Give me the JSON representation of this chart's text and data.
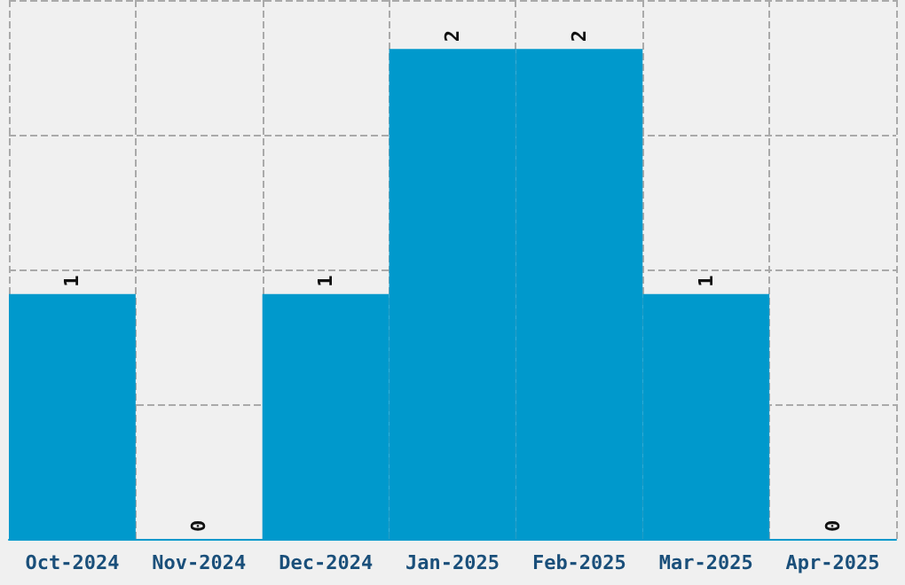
{
  "chart_data": {
    "type": "bar",
    "categories": [
      "Oct-2024",
      "Nov-2024",
      "Dec-2024",
      "Jan-2025",
      "Feb-2025",
      "Mar-2025",
      "Apr-2025"
    ],
    "values": [
      1,
      0,
      1,
      2,
      2,
      1,
      0
    ],
    "color": "#0099cc",
    "ylim": [
      0,
      2.2
    ],
    "yticks": [
      {
        "value": 0.55,
        "label": null
      },
      {
        "value": 1.1,
        "label": null
      },
      {
        "value": 1.65,
        "label": null
      },
      {
        "value": 2.2,
        "label": null
      }
    ],
    "tick_labels": "x",
    "grid": true,
    "data_labels": true
  }
}
